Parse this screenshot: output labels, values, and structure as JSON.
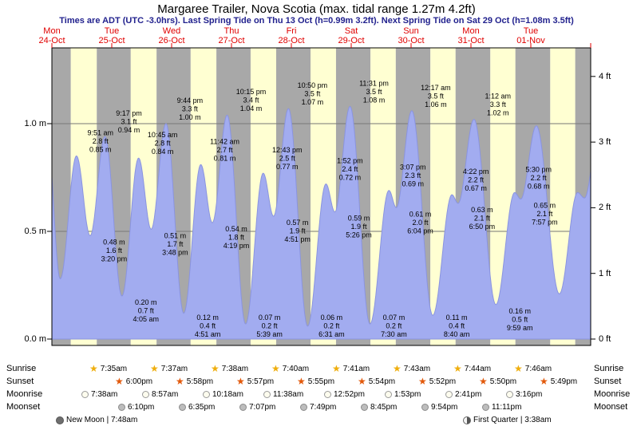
{
  "header": {
    "title": "Margaree Trailer, Nova Scotia (max. tidal range 1.27m 4.2ft)",
    "subtitle": "Times are ADT (UTC -3.0hrs). Last Spring Tide on Thu 13 Oct (h=0.99m 3.2ft). Next Spring Tide on Sat 29 Oct (h=1.08m 3.5ft)"
  },
  "chart_data": {
    "type": "area",
    "title": "Margaree Trailer, Nova Scotia tide curve",
    "xlabel": "",
    "ylabel_left": "m",
    "ylabel_right": "ft",
    "xlim_days": [
      0,
      9
    ],
    "ylim_m": [
      0,
      1.38
    ],
    "days": [
      {
        "day": "Mon",
        "date": "24-Oct"
      },
      {
        "day": "Tue",
        "date": "25-Oct"
      },
      {
        "day": "Wed",
        "date": "26-Oct"
      },
      {
        "day": "Thu",
        "date": "27-Oct"
      },
      {
        "day": "Fri",
        "date": "28-Oct"
      },
      {
        "day": "Sat",
        "date": "29-Oct"
      },
      {
        "day": "Sun",
        "date": "30-Oct"
      },
      {
        "day": "Mon",
        "date": "31-Oct"
      },
      {
        "day": "Tue",
        "date": "01-Nov"
      }
    ],
    "y_ticks_m": [
      {
        "v": 0.0,
        "label": "0.0 m"
      },
      {
        "v": 0.5,
        "label": "0.5 m"
      },
      {
        "v": 1.0,
        "label": "1.0 m"
      }
    ],
    "y_ticks_ft": [
      {
        "v": 0,
        "label": "0 ft"
      },
      {
        "v": 1,
        "label": "1 ft"
      },
      {
        "v": 2,
        "label": "2 ft"
      },
      {
        "v": 3,
        "label": "3 ft"
      },
      {
        "v": 4,
        "label": "4 ft"
      }
    ],
    "sunrise_decimal_hours": [
      7.583,
      7.617,
      7.633,
      7.667,
      7.683,
      7.717,
      7.733,
      7.767,
      7.783
    ],
    "sunset_decimal_hours": [
      18.0,
      17.967,
      17.95,
      17.917,
      17.9,
      17.867,
      17.833,
      17.817,
      17.8
    ],
    "events": [
      {
        "t": -0.08,
        "h": 0.95,
        "type": "high",
        "annotate": false
      },
      {
        "t": 0.139,
        "h": 0.28,
        "type": "low",
        "annotate": false
      },
      {
        "t": 0.4104,
        "h": 0.85,
        "type": "high",
        "annotate": true,
        "time": "9:51 am",
        "ft": "2.8 ft",
        "m": "0.85 m"
      },
      {
        "t": 0.6389,
        "h": 0.48,
        "type": "low",
        "annotate": true,
        "time": "3:20 pm",
        "ft": "1.6 ft",
        "m": "0.48 m"
      },
      {
        "t": 0.8868,
        "h": 0.94,
        "type": "high",
        "annotate": true,
        "time": "9:17 pm",
        "ft": "3.1 ft",
        "m": "0.94 m"
      },
      {
        "t": 1.1701,
        "h": 0.2,
        "type": "low",
        "annotate": true,
        "time": "4:05 am",
        "ft": "0.7 ft",
        "m": "0.20 m"
      },
      {
        "t": 1.4479,
        "h": 0.84,
        "type": "high",
        "annotate": true,
        "time": "10:45 am",
        "ft": "2.8 ft",
        "m": "0.84 m"
      },
      {
        "t": 1.6583,
        "h": 0.51,
        "type": "low",
        "annotate": true,
        "time": "3:48 pm",
        "ft": "1.7 ft",
        "m": "0.51 m"
      },
      {
        "t": 1.9056,
        "h": 1.0,
        "type": "high",
        "annotate": true,
        "time": "9:44 pm",
        "ft": "3.3 ft",
        "m": "1.00 m"
      },
      {
        "t": 2.2021,
        "h": 0.12,
        "type": "low",
        "annotate": true,
        "time": "4:51 am",
        "ft": "0.4 ft",
        "m": "0.12 m"
      },
      {
        "t": 2.4875,
        "h": 0.81,
        "type": "high",
        "annotate": true,
        "time": "11:42 am",
        "ft": "2.7 ft",
        "m": "0.81 m"
      },
      {
        "t": 2.6799,
        "h": 0.54,
        "type": "low",
        "annotate": true,
        "time": "4:19 pm",
        "ft": "1.8 ft",
        "m": "0.54 m"
      },
      {
        "t": 2.9271,
        "h": 1.04,
        "type": "high",
        "annotate": true,
        "time": "10:15 pm",
        "ft": "3.4 ft",
        "m": "1.04 m"
      },
      {
        "t": 3.2354,
        "h": 0.07,
        "type": "low",
        "annotate": true,
        "time": "5:39 am",
        "ft": "0.2 ft",
        "m": "0.07 m"
      },
      {
        "t": 3.5299,
        "h": 0.77,
        "type": "high",
        "annotate": true,
        "time": "12:43 pm",
        "ft": "2.5 ft",
        "m": "0.77 m"
      },
      {
        "t": 3.7021,
        "h": 0.57,
        "type": "low",
        "annotate": true,
        "time": "4:51 pm",
        "ft": "1.9 ft",
        "m": "0.57 m"
      },
      {
        "t": 3.9514,
        "h": 1.07,
        "type": "high",
        "annotate": true,
        "time": "10:50 pm",
        "ft": "3.5 ft",
        "m": "1.07 m"
      },
      {
        "t": 4.2715,
        "h": 0.06,
        "type": "low",
        "annotate": true,
        "time": "6:31 am",
        "ft": "0.2 ft",
        "m": "0.06 m"
      },
      {
        "t": 4.5778,
        "h": 0.72,
        "type": "high",
        "annotate": true,
        "time": "1:52 pm",
        "ft": "2.4 ft",
        "m": "0.72 m"
      },
      {
        "t": 4.7264,
        "h": 0.59,
        "type": "low",
        "annotate": true,
        "time": "5:26 pm",
        "ft": "1.9 ft",
        "m": "0.59 m"
      },
      {
        "t": 4.9799,
        "h": 1.08,
        "type": "high",
        "annotate": true,
        "time": "11:31 pm",
        "ft": "3.5 ft",
        "m": "1.08 m"
      },
      {
        "t": 5.3125,
        "h": 0.07,
        "type": "low",
        "annotate": true,
        "time": "7:30 am",
        "ft": "0.2 ft",
        "m": "0.07 m"
      },
      {
        "t": 5.6299,
        "h": 0.69,
        "type": "high",
        "annotate": true,
        "time": "3:07 pm",
        "ft": "2.3 ft",
        "m": "0.69 m"
      },
      {
        "t": 5.7528,
        "h": 0.61,
        "type": "low",
        "annotate": true,
        "time": "6:04 pm",
        "ft": "2.0 ft",
        "m": "0.61 m"
      },
      {
        "t": 6.0118,
        "h": 1.06,
        "type": "high",
        "annotate": true,
        "time": "12:17 am",
        "ft": "3.5 ft",
        "m": "1.06 m"
      },
      {
        "t": 6.3611,
        "h": 0.11,
        "type": "low",
        "annotate": true,
        "time": "8:40 am",
        "ft": "0.4 ft",
        "m": "0.11 m"
      },
      {
        "t": 6.6819,
        "h": 0.67,
        "type": "high",
        "annotate": true,
        "time": "4:22 pm",
        "ft": "2.2 ft",
        "m": "0.67 m"
      },
      {
        "t": 6.7847,
        "h": 0.63,
        "type": "low",
        "annotate": true,
        "time": "6:50 pm",
        "ft": "2.1 ft",
        "m": "0.63 m"
      },
      {
        "t": 7.05,
        "h": 1.02,
        "type": "high",
        "annotate": true,
        "time": "1:12 am",
        "ft": "3.3 ft",
        "m": "1.02 m"
      },
      {
        "t": 7.416,
        "h": 0.16,
        "type": "low",
        "annotate": true,
        "time": "9:59 am",
        "ft": "0.5 ft",
        "m": "0.16 m"
      },
      {
        "t": 7.7292,
        "h": 0.68,
        "type": "high",
        "annotate": true,
        "time": "5:30 pm",
        "ft": "2.2 ft",
        "m": "0.68 m"
      },
      {
        "t": 7.8313,
        "h": 0.65,
        "type": "low",
        "annotate": true,
        "time": "7:57 pm",
        "ft": "2.1 ft",
        "m": "0.65 m"
      },
      {
        "t": 8.092,
        "h": 0.99,
        "type": "high",
        "annotate": false
      },
      {
        "t": 8.476,
        "h": 0.21,
        "type": "low",
        "annotate": false
      },
      {
        "t": 8.781,
        "h": 0.68,
        "type": "high",
        "annotate": false
      },
      {
        "t": 8.896,
        "h": 0.655,
        "type": "low",
        "annotate": false
      },
      {
        "t": 9.15,
        "h": 1.0,
        "type": "high",
        "annotate": false
      }
    ],
    "colors": {
      "night_band": "#a8a8a8",
      "day_band": "#ffffd2",
      "tide_fill": "#a2acf0",
      "tide_stroke": "#8a94e0",
      "date_red": "#e00000",
      "subtitle_blue": "#22228e",
      "grid": "#777777"
    }
  },
  "almanac": {
    "row_labels": [
      "Sunrise",
      "Sunset",
      "Moonrise",
      "Moonset"
    ],
    "rows": [
      {
        "name": "sunrise",
        "icon": "sunrise-icon",
        "times": [
          "7:35am",
          "7:37am",
          "7:38am",
          "7:40am",
          "7:41am",
          "7:43am",
          "7:44am",
          "7:46am"
        ]
      },
      {
        "name": "sunset",
        "icon": "sunset-icon",
        "times": [
          "6:00pm",
          "5:58pm",
          "5:57pm",
          "5:55pm",
          "5:54pm",
          "5:52pm",
          "5:50pm",
          "5:49pm"
        ]
      },
      {
        "name": "moonrise",
        "icon": "moonrise-icon",
        "times": [
          "7:38am",
          "8:57am",
          "10:18am",
          "11:38am",
          "12:52pm",
          "1:53pm",
          "2:41pm",
          "3:16pm"
        ]
      },
      {
        "name": "moonset",
        "icon": "moonset-icon",
        "times": [
          "6:10pm",
          "6:35pm",
          "7:07pm",
          "7:49pm",
          "8:45pm",
          "9:54pm",
          "11:11pm"
        ]
      }
    ],
    "phases": [
      {
        "icon": "new-moon-icon",
        "label": "New Moon | 7:48am"
      },
      {
        "icon": "first-quarter-icon",
        "label": "First Quarter | 3:38am"
      }
    ]
  }
}
